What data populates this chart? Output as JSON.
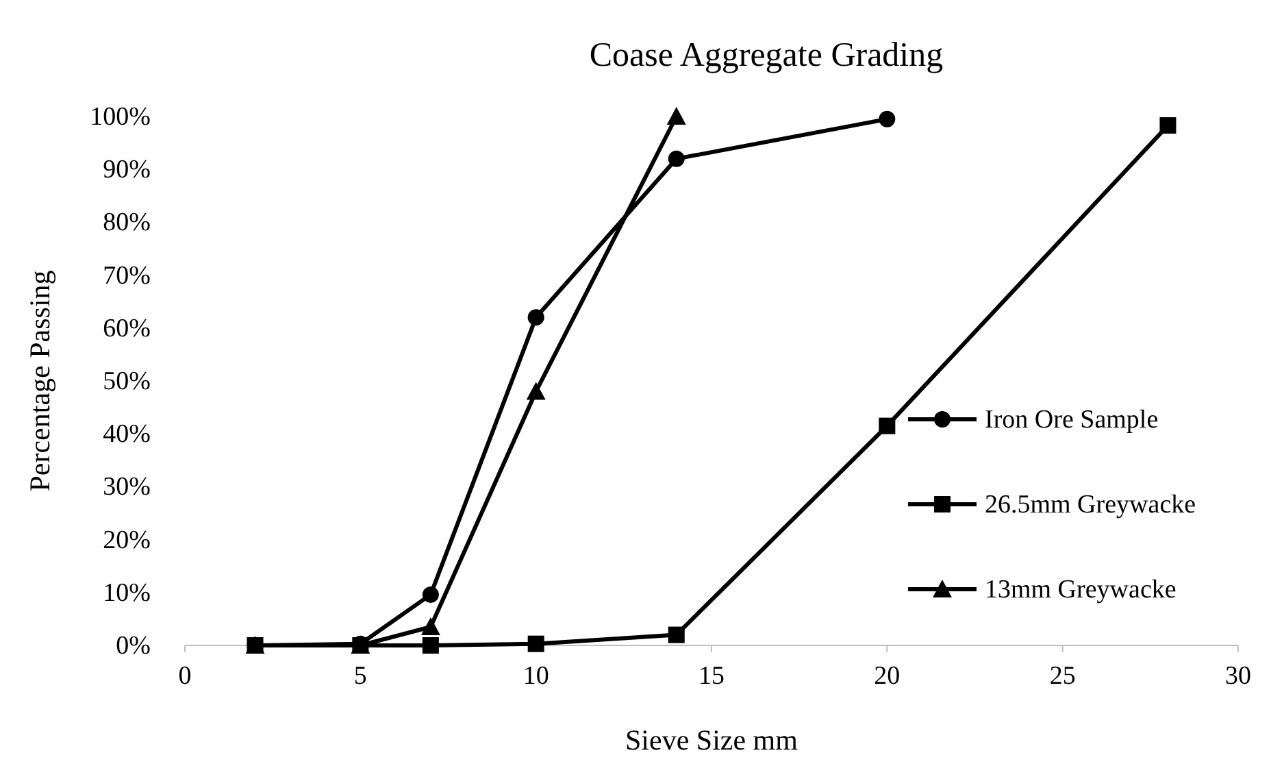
{
  "chart_data": {
    "type": "line",
    "title": "Coase Aggregate Grading",
    "xlabel": "Sieve Size mm",
    "ylabel": "Percentage Passing",
    "xlim": [
      0,
      30
    ],
    "xticks": [
      0,
      5,
      10,
      15,
      20,
      25,
      30
    ],
    "ylim": [
      0,
      100
    ],
    "yticks": [
      {
        "value": 0,
        "label": "0%"
      },
      {
        "value": 10,
        "label": "10%"
      },
      {
        "value": 20,
        "label": "20%"
      },
      {
        "value": 30,
        "label": "30%"
      },
      {
        "value": 40,
        "label": "40%"
      },
      {
        "value": 50,
        "label": "50%"
      },
      {
        "value": 60,
        "label": "60%"
      },
      {
        "value": 70,
        "label": "70%"
      },
      {
        "value": 80,
        "label": "80%"
      },
      {
        "value": 90,
        "label": "90%"
      },
      {
        "value": 100,
        "label": "100%"
      }
    ],
    "grid": false,
    "legend": "right",
    "line_style": "solid",
    "series": [
      {
        "name": "Iron Ore Sample",
        "color": "#000000",
        "marker": "circle",
        "x": [
          2,
          5,
          7,
          10,
          14,
          20
        ],
        "values": [
          0,
          0.3,
          9.6,
          62,
          92,
          99.5
        ]
      },
      {
        "name": "26.5mm Greywacke",
        "color": "#000000",
        "marker": "square",
        "x": [
          2,
          5,
          7,
          10,
          14,
          20,
          28
        ],
        "values": [
          0,
          0,
          0,
          0.3,
          2,
          41.5,
          98.3
        ]
      },
      {
        "name": "13mm Greywacke",
        "color": "#000000",
        "marker": "triangle",
        "x": [
          2,
          5,
          7,
          10,
          14
        ],
        "values": [
          0,
          0,
          3.5,
          48,
          100
        ]
      }
    ]
  }
}
